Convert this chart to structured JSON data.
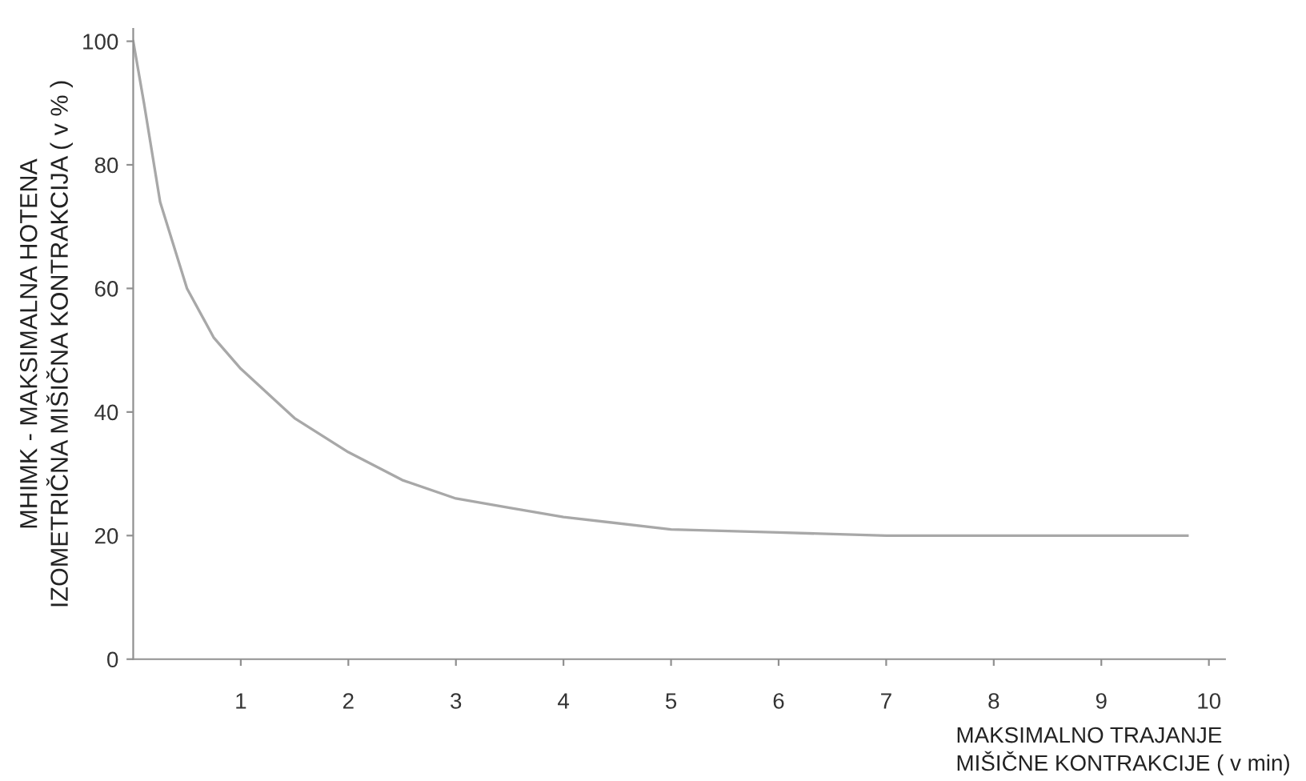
{
  "chart_data": {
    "type": "line",
    "xlabel": "MAKSIMALNO TRAJANJE\nMIŠIČNE KONTRAKCIJE ( v min)",
    "ylabel": "MHIMK - MAKSIMALNA HOTENA\nIZOMETRIČNA MIŠIČNA KONTRAKCIJA ( v % )",
    "series": [
      {
        "color": "#a8a8a8",
        "x": [
          0,
          0.1,
          0.25,
          0.5,
          0.75,
          1,
          1.5,
          2,
          2.5,
          3,
          3.5,
          4,
          5,
          6,
          7,
          8,
          9,
          9.8
        ],
        "values": [
          100,
          90,
          74,
          60,
          52,
          47,
          39,
          33.5,
          29,
          26,
          24.5,
          23,
          21,
          20.5,
          20,
          20,
          20,
          20
        ]
      }
    ],
    "xlim": [
      0,
      10.15
    ],
    "ylim": [
      0,
      102
    ],
    "xticks": [
      1,
      2,
      3,
      4,
      5,
      6,
      7,
      8,
      9,
      10
    ],
    "yticks": [
      0,
      20,
      40,
      60,
      80,
      100
    ],
    "grid": false,
    "legend": false,
    "marker": "none",
    "line_style": "solid"
  }
}
